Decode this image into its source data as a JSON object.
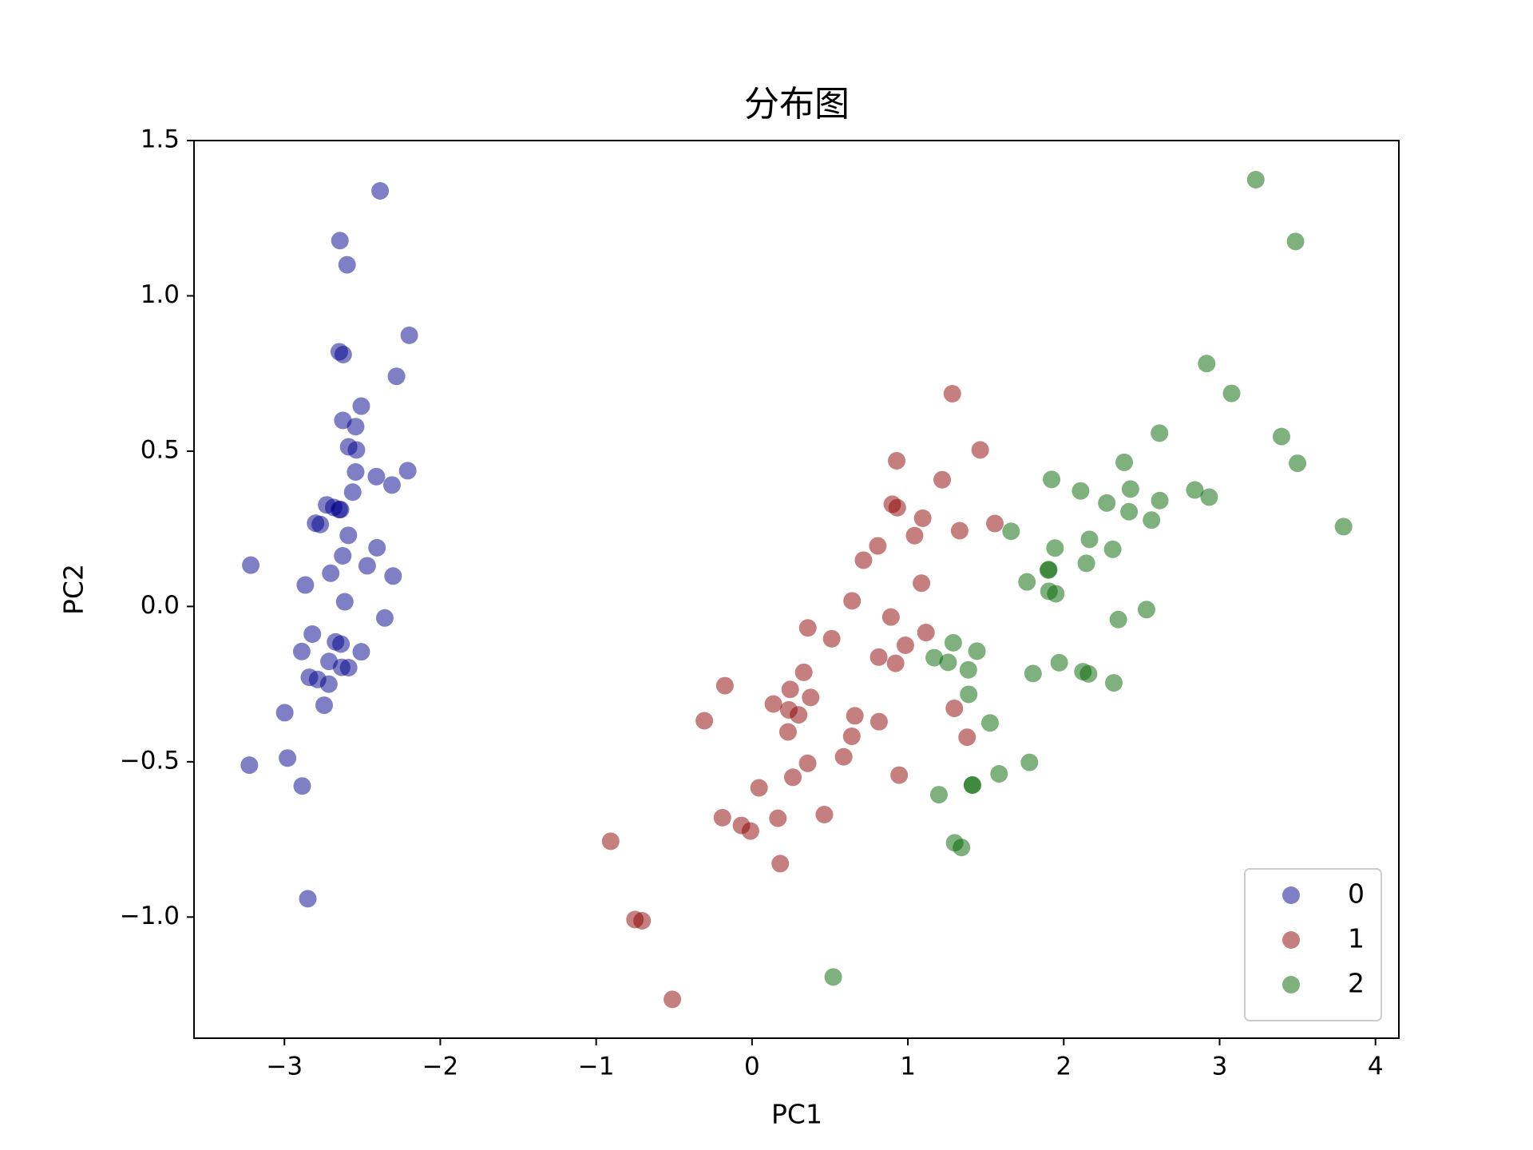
{
  "chart_data": {
    "type": "scatter",
    "title": "分布图",
    "x_label": "PC1",
    "y_label": "PC2",
    "xlim": [
      -3.58,
      4.15
    ],
    "ylim": [
      -1.39,
      1.5
    ],
    "xticks": [
      {
        "value": -3,
        "label": "−3"
      },
      {
        "value": -2,
        "label": "−2"
      },
      {
        "value": -1,
        "label": "−1"
      },
      0,
      1,
      2,
      3,
      4
    ],
    "yticks": [
      {
        "value": -1.0,
        "label": "−1.0"
      },
      {
        "value": -0.5,
        "label": "−0.5"
      },
      {
        "value": 0.0,
        "label": "0.0"
      },
      0.5,
      {
        "value": 1.0,
        "label": "1.0"
      },
      1.5
    ],
    "legend": "lower right",
    "series": [
      {
        "name": "0",
        "color": "#00008b",
        "x": [
          -2.684,
          -2.714,
          -2.889,
          -2.745,
          -2.729,
          -2.281,
          -2.821,
          -2.626,
          -2.886,
          -2.672,
          -2.507,
          -2.613,
          -2.787,
          -3.225,
          -2.644,
          -2.386,
          -2.623,
          -2.648,
          -2.199,
          -2.588,
          -2.31,
          -2.543,
          -3.216,
          -2.303,
          -2.356,
          -2.507,
          -2.469,
          -2.562,
          -2.64,
          -2.633,
          -2.588,
          -2.41,
          -2.648,
          -2.598,
          -2.637,
          -2.866,
          -2.625,
          -2.8,
          -2.98,
          -2.59,
          -2.77,
          -2.85,
          -2.998,
          -2.406,
          -2.209,
          -2.715,
          -2.538,
          -2.84,
          -2.543,
          -2.703
        ],
        "y": [
          0.319,
          -0.177,
          -0.145,
          -0.318,
          0.327,
          0.741,
          -0.089,
          0.163,
          -0.578,
          -0.114,
          0.645,
          0.015,
          -0.235,
          -0.511,
          1.178,
          1.338,
          0.811,
          0.312,
          0.873,
          0.514,
          0.391,
          0.433,
          0.133,
          0.098,
          -0.037,
          -0.146,
          0.131,
          0.368,
          0.312,
          -0.196,
          -0.197,
          0.418,
          0.82,
          1.1,
          -0.121,
          0.069,
          0.599,
          0.268,
          -0.488,
          0.229,
          0.264,
          -0.941,
          -0.342,
          0.189,
          0.437,
          -0.25,
          0.504,
          -0.228,
          0.579,
          0.107
        ]
      },
      {
        "name": "1",
        "color": "#8b0000",
        "x": [
          1.285,
          0.932,
          1.464,
          0.181,
          1.087,
          0.64,
          1.095,
          -0.751,
          1.043,
          -0.01,
          -0.511,
          0.511,
          0.262,
          0.984,
          -0.174,
          0.928,
          0.66,
          0.236,
          0.944,
          0.045,
          1.116,
          0.358,
          1.298,
          0.921,
          0.715,
          0.9,
          1.332,
          1.558,
          0.813,
          -0.306,
          -0.068,
          -0.19,
          0.137,
          1.38,
          0.588,
          0.807,
          1.22,
          0.815,
          0.245,
          0.166,
          0.464,
          0.891,
          0.231,
          -0.705,
          0.357,
          0.332,
          0.376,
          0.642,
          -0.907,
          0.299
        ],
        "y": [
          0.685,
          0.318,
          0.504,
          -0.828,
          0.075,
          -0.418,
          0.284,
          -1.008,
          0.228,
          -0.723,
          -1.265,
          -0.104,
          -0.55,
          -0.125,
          -0.255,
          0.469,
          -0.352,
          -0.333,
          -0.543,
          -0.584,
          -0.084,
          -0.069,
          -0.328,
          -0.183,
          0.149,
          0.329,
          0.244,
          0.267,
          -0.163,
          -0.368,
          -0.705,
          -0.68,
          -0.314,
          -0.421,
          -0.484,
          0.195,
          0.408,
          -0.371,
          -0.267,
          -0.682,
          -0.67,
          -0.034,
          -0.404,
          -1.012,
          -0.505,
          -0.212,
          -0.293,
          0.018,
          -0.756,
          -0.349
        ]
      },
      {
        "name": "2",
        "color": "#006400",
        "x": [
          2.531,
          1.414,
          2.616,
          1.971,
          2.35,
          3.397,
          0.521,
          2.933,
          2.321,
          2.917,
          1.662,
          1.803,
          2.165,
          1.344,
          1.585,
          1.904,
          1.949,
          3.487,
          3.795,
          1.3,
          2.428,
          1.199,
          3.5,
          1.388,
          2.276,
          2.614,
          1.258,
          1.291,
          2.123,
          2.388,
          2.841,
          3.232,
          2.159,
          1.443,
          1.78,
          3.077,
          2.145,
          1.905,
          1.169,
          2.108,
          2.314,
          1.922,
          1.414,
          2.563,
          2.419,
          1.944,
          1.527,
          1.764,
          1.901,
          1.39
        ],
        "y": [
          -0.01,
          -0.575,
          0.341,
          -0.181,
          -0.042,
          0.547,
          -1.193,
          0.352,
          -0.246,
          0.782,
          0.242,
          -0.216,
          0.216,
          -0.776,
          -0.539,
          0.119,
          0.041,
          1.175,
          0.257,
          -0.761,
          0.378,
          -0.606,
          0.461,
          -0.204,
          0.333,
          0.558,
          -0.18,
          -0.117,
          -0.21,
          0.464,
          0.375,
          1.374,
          -0.217,
          -0.144,
          -0.502,
          0.686,
          0.139,
          0.049,
          -0.165,
          0.372,
          0.184,
          0.409,
          -0.575,
          0.278,
          0.305,
          0.188,
          -0.375,
          0.079,
          0.117,
          -0.283
        ]
      }
    ]
  }
}
